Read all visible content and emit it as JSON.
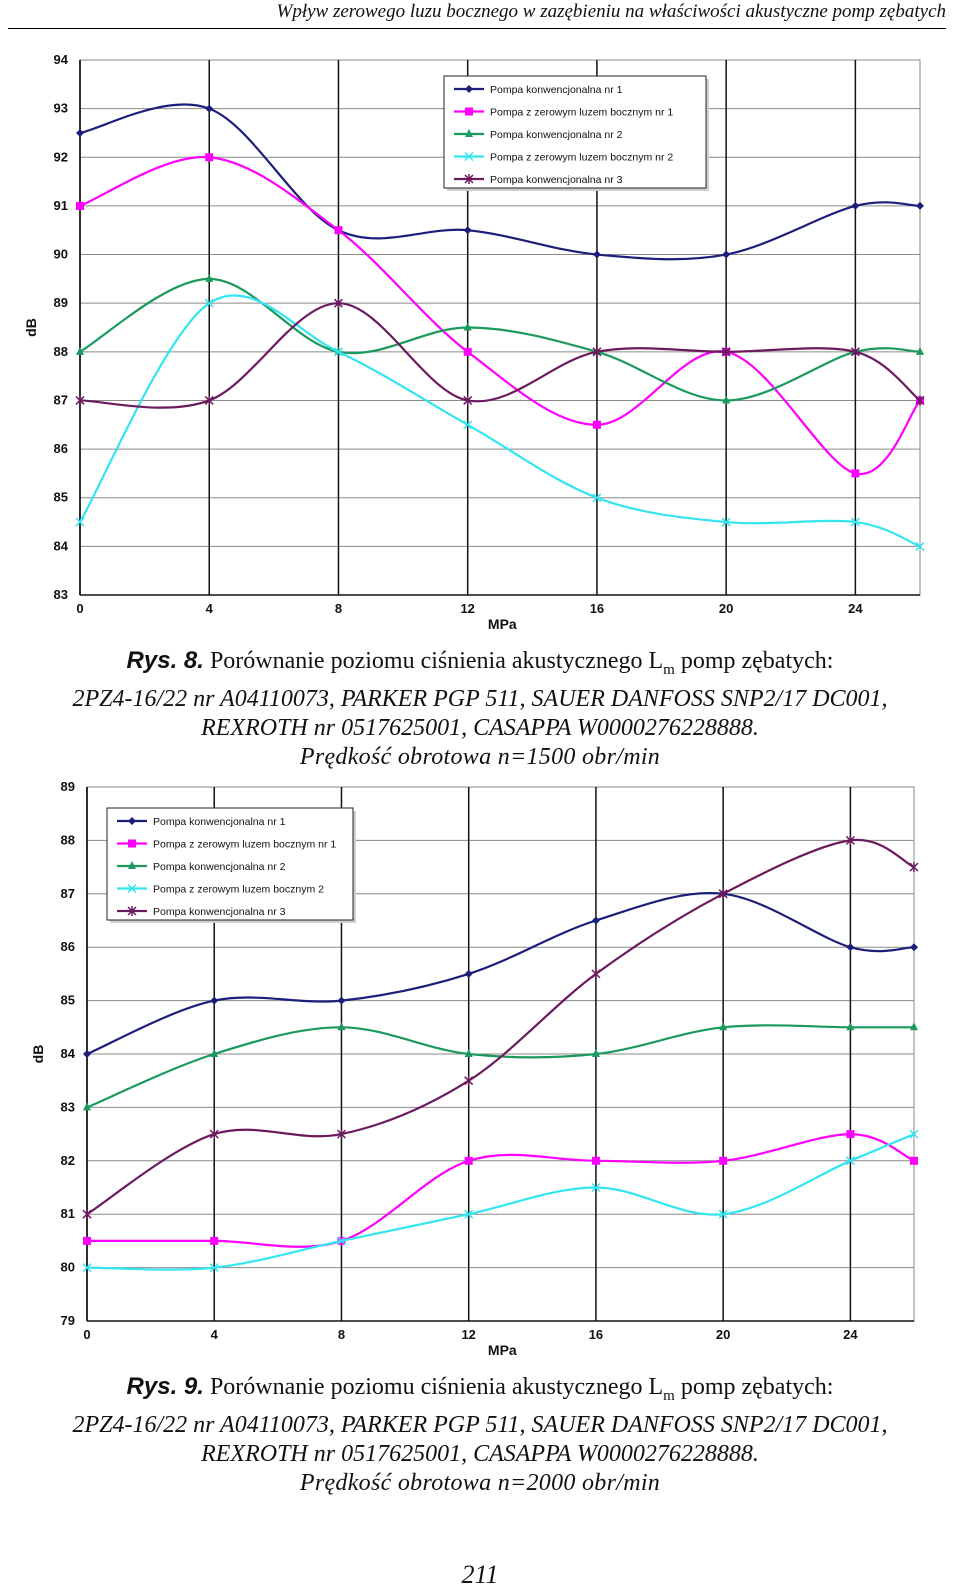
{
  "header": {
    "running_title": "Wpływ zerowego luzu bocznego w zazębieniu na właściwości akustyczne pomp zębatych"
  },
  "figure8": {
    "label": "Rys. 8.",
    "caption_line1": "Porównanie poziomu ciśnienia akustycznego L",
    "caption_sub": "m",
    "caption_line1_end": "pomp zębatych:",
    "caption_line2": "2PZ4-16/22 nr A04110073, PARKER PGP 511, SAUER DANFOSS SNP2/17 DC001,",
    "caption_line3": "REXROTH nr 0517625001, CASAPPA W0000276228888.",
    "caption_line4": "Prędkość obrotowa n=1500 obr/min"
  },
  "figure9": {
    "label": "Rys. 9.",
    "caption_line1": "Porównanie poziomu ciśnienia akustycznego L",
    "caption_sub": "m",
    "caption_line1_end": "pomp zębatych:",
    "caption_line2": "2PZ4-16/22 nr A04110073, PARKER PGP 511, SAUER DANFOSS SNP2/17 DC001,",
    "caption_line3": "REXROTH nr 0517625001, CASAPPA W0000276228888.",
    "caption_line4": "Prędkość obrotowa n=2000 obr/min"
  },
  "page_number": "211",
  "chart_data": [
    {
      "type": "line",
      "title": "",
      "xlabel": "MPa",
      "ylabel": "dB",
      "x": [
        0,
        4,
        8,
        12,
        16,
        20,
        24,
        26
      ],
      "x_ticks": [
        "0",
        "4",
        "8",
        "12",
        "16",
        "20",
        "24"
      ],
      "xlim": [
        0,
        26
      ],
      "ylim": [
        83,
        94
      ],
      "y_ticks": [
        "83",
        "84",
        "85",
        "86",
        "87",
        "88",
        "89",
        "90",
        "91",
        "92",
        "93",
        "94"
      ],
      "grid": true,
      "legend": "top-right",
      "series": [
        {
          "name": "Pompa konwencjonalna nr 1",
          "color": "#1b1f7a",
          "marker": "diamond",
          "values": [
            92.5,
            93,
            90.5,
            90.5,
            90,
            90,
            91,
            91
          ]
        },
        {
          "name": "Pompa z zerowym luzem bocznym nr 1",
          "color": "#ff00ff",
          "marker": "square",
          "values": [
            91,
            92,
            90.5,
            88,
            86.5,
            88,
            85.5,
            87
          ]
        },
        {
          "name": "Pompa konwencjonalna nr 2",
          "color": "#1a9a5c",
          "marker": "triangle",
          "values": [
            88,
            89.5,
            88,
            88.5,
            88,
            87,
            88,
            88
          ]
        },
        {
          "name": "Pompa z zerowym luzem bocznym nr 2",
          "color": "#33e5f0",
          "marker": "x",
          "values": [
            84.5,
            89,
            88,
            86.5,
            85,
            84.5,
            84.5,
            84
          ]
        },
        {
          "name": "Pompa konwencjonalna nr 3",
          "color": "#6b1a5e",
          "marker": "star",
          "values": [
            87,
            87,
            89,
            87,
            88,
            88,
            88,
            87
          ]
        }
      ]
    },
    {
      "type": "line",
      "title": "",
      "xlabel": "MPa",
      "ylabel": "dB",
      "x": [
        0,
        4,
        8,
        12,
        16,
        20,
        24,
        26
      ],
      "x_ticks": [
        "0",
        "4",
        "8",
        "12",
        "16",
        "20",
        "24"
      ],
      "xlim": [
        0,
        26
      ],
      "ylim": [
        79,
        89
      ],
      "y_ticks": [
        "79",
        "80",
        "81",
        "82",
        "83",
        "84",
        "85",
        "86",
        "87",
        "88",
        "89"
      ],
      "grid": true,
      "legend": "top-left",
      "series": [
        {
          "name": "Pompa konwencjonalna nr 1",
          "color": "#1b1f7a",
          "marker": "diamond",
          "values": [
            84,
            85,
            85,
            85.5,
            86.5,
            87,
            86,
            86
          ]
        },
        {
          "name": "Pompa z zerowym luzem bocznym nr 1",
          "color": "#ff00ff",
          "marker": "square",
          "values": [
            80.5,
            80.5,
            80.5,
            82,
            82,
            82,
            82.5,
            82
          ]
        },
        {
          "name": "Pompa konwencjonalna nr 2",
          "color": "#1a9a5c",
          "marker": "triangle",
          "values": [
            83,
            84,
            84.5,
            84,
            84,
            84.5,
            84.5,
            84.5
          ]
        },
        {
          "name": "Pompa z zerowym luzem bocznym 2",
          "color": "#33e5f0",
          "marker": "x",
          "values": [
            80,
            80,
            80.5,
            81,
            81.5,
            81,
            82,
            82.5
          ]
        },
        {
          "name": "Pompa konwencjonalna nr 3",
          "color": "#6b1a5e",
          "marker": "star",
          "values": [
            81,
            82.5,
            82.5,
            83.5,
            85.5,
            87,
            88,
            87.5
          ]
        }
      ]
    }
  ]
}
